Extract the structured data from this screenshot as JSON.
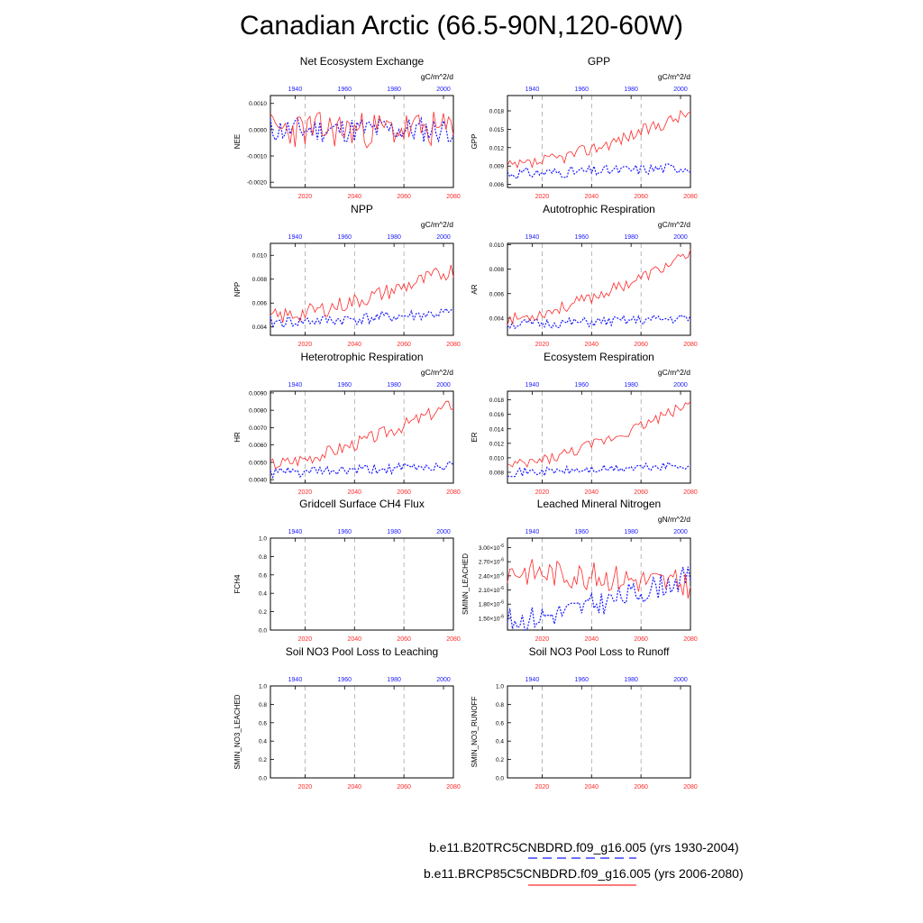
{
  "title": "Canadian Arctic (66.5-90N,120-60W)",
  "colors": {
    "future": "#ff2a2a",
    "historical": "#1a1aff",
    "guide": "#888888"
  },
  "legend": {
    "historical": "b.e11.B20TRC5CNBDRD.f09_g16.005 (yrs 1930-2004)",
    "future": "b.e11.BRCP85C5CNBDRD.f09_g16.005 (yrs 2006-2080)"
  },
  "chart_data": [
    {
      "type": "line",
      "title": "Net Ecosystem Exchange",
      "units": "gC/m^2/d",
      "ylabel": "NEE",
      "ylim": [
        -0.0022,
        0.0013
      ],
      "yticks": [
        -0.002,
        -0.001,
        0.0,
        0.001
      ],
      "ytick_labels": [
        "-0.0020",
        "-0.0010",
        "0.0000",
        "0.0010"
      ],
      "xlim_future": [
        2006,
        2080
      ],
      "xticks_future": [
        2020,
        2040,
        2060,
        2080
      ],
      "xticks_hist": [
        1940,
        1960,
        1980,
        2000
      ],
      "series": [
        {
          "name": "historical",
          "start": 0.0,
          "end": 0.0,
          "noise": 0.0005,
          "seed": 11
        },
        {
          "name": "future",
          "start": 0.0,
          "end": 0.0,
          "noise": 0.0007,
          "seed": 23
        }
      ]
    },
    {
      "type": "line",
      "title": "GPP",
      "units": "gC/m^2/d",
      "ylabel": "GPP",
      "ylim": [
        0.0055,
        0.0205
      ],
      "yticks": [
        0.006,
        0.009,
        0.012,
        0.015,
        0.018
      ],
      "ytick_labels": [
        "0.006",
        "0.009",
        "0.012",
        "0.015",
        "0.018"
      ],
      "xlim_future": [
        2006,
        2080
      ],
      "xticks_future": [
        2020,
        2040,
        2060,
        2080
      ],
      "xticks_hist": [
        1940,
        1960,
        1980,
        2000
      ],
      "series": [
        {
          "name": "historical",
          "start": 0.0078,
          "end": 0.0088,
          "noise": 0.0009,
          "seed": 31
        },
        {
          "name": "future",
          "start": 0.0088,
          "end": 0.0178,
          "noise": 0.0011,
          "seed": 37
        }
      ]
    },
    {
      "type": "line",
      "title": "NPP",
      "units": "gC/m^2/d",
      "ylabel": "NPP",
      "ylim": [
        0.0033,
        0.011
      ],
      "yticks": [
        0.004,
        0.006,
        0.008,
        0.01
      ],
      "ytick_labels": [
        "0.004",
        "0.006",
        "0.008",
        "0.010"
      ],
      "xlim_future": [
        2006,
        2080
      ],
      "xticks_future": [
        2020,
        2040,
        2060,
        2080
      ],
      "xticks_hist": [
        1940,
        1960,
        1980,
        2000
      ],
      "series": [
        {
          "name": "historical",
          "start": 0.0044,
          "end": 0.0052,
          "noise": 0.0005,
          "seed": 41
        },
        {
          "name": "future",
          "start": 0.0048,
          "end": 0.0088,
          "noise": 0.0007,
          "seed": 43
        }
      ]
    },
    {
      "type": "line",
      "title": "Autotrophic Respiration",
      "units": "gC/m^2/d",
      "ylabel": "AR",
      "ylim": [
        0.0026,
        0.0101
      ],
      "yticks": [
        0.004,
        0.006,
        0.008,
        0.01
      ],
      "ytick_labels": [
        "0.004",
        "0.006",
        "0.008",
        "0.010"
      ],
      "xlim_future": [
        2006,
        2080
      ],
      "xticks_future": [
        2020,
        2040,
        2060,
        2080
      ],
      "xticks_hist": [
        1940,
        1960,
        1980,
        2000
      ],
      "series": [
        {
          "name": "historical",
          "start": 0.0035,
          "end": 0.004,
          "noise": 0.0004,
          "seed": 51
        },
        {
          "name": "future",
          "start": 0.0039,
          "end": 0.0092,
          "noise": 0.0005,
          "seed": 53
        }
      ]
    },
    {
      "type": "line",
      "title": "Heterotrophic Respiration",
      "units": "gC/m^2/d",
      "ylabel": "HR",
      "ylim": [
        0.0038,
        0.0091
      ],
      "yticks": [
        0.004,
        0.005,
        0.006,
        0.007,
        0.008,
        0.009
      ],
      "ytick_labels": [
        "0.0040",
        "0.0050",
        "0.0060",
        "0.0070",
        "0.0080",
        "0.0090"
      ],
      "xlim_future": [
        2006,
        2080
      ],
      "xticks_future": [
        2020,
        2040,
        2060,
        2080
      ],
      "xticks_hist": [
        1940,
        1960,
        1980,
        2000
      ],
      "series": [
        {
          "name": "historical",
          "start": 0.0044,
          "end": 0.0048,
          "noise": 0.0003,
          "seed": 61
        },
        {
          "name": "future",
          "start": 0.0049,
          "end": 0.0084,
          "noise": 0.0004,
          "seed": 67
        }
      ]
    },
    {
      "type": "line",
      "title": "Ecosystem Respiration",
      "units": "gC/m^2/d",
      "ylabel": "ER",
      "ylim": [
        0.0065,
        0.0192
      ],
      "yticks": [
        0.008,
        0.01,
        0.012,
        0.014,
        0.016,
        0.018
      ],
      "ytick_labels": [
        "0.008",
        "0.010",
        "0.012",
        "0.014",
        "0.016",
        "0.018"
      ],
      "xlim_future": [
        2006,
        2080
      ],
      "xticks_future": [
        2020,
        2040,
        2060,
        2080
      ],
      "xticks_hist": [
        1940,
        1960,
        1980,
        2000
      ],
      "series": [
        {
          "name": "historical",
          "start": 0.008,
          "end": 0.009,
          "noise": 0.0006,
          "seed": 71
        },
        {
          "name": "future",
          "start": 0.0088,
          "end": 0.0176,
          "noise": 0.0008,
          "seed": 73
        }
      ]
    },
    {
      "type": "line",
      "title": "Gridcell Surface CH4 Flux",
      "units": "",
      "ylabel": "FCH4",
      "ylim": [
        0,
        1
      ],
      "yticks": [
        0,
        0.2,
        0.4,
        0.6,
        0.8,
        1.0
      ],
      "ytick_labels": [
        "0.0",
        "0.2",
        "0.4",
        "0.6",
        "0.8",
        "1.0"
      ],
      "xlim_future": [
        2006,
        2080
      ],
      "xticks_future": [
        2020,
        2040,
        2060,
        2080
      ],
      "xticks_hist": [
        1940,
        1960,
        1980,
        2000
      ],
      "series": []
    },
    {
      "type": "line",
      "title": "Leached Mineral Nitrogen",
      "units": "gN/m^2/d",
      "ylabel": "SMINN_LEACHED",
      "ylim": [
        1.25e-06,
        3.2e-06
      ],
      "yticks": [
        1.5e-06,
        1.8e-06,
        2.1e-06,
        2.4e-06,
        2.7e-06,
        3e-06
      ],
      "ytick_labels": [
        "1.50",
        "1.80",
        "2.10",
        "2.40",
        "2.70",
        "3.00"
      ],
      "ytick_exp": "-6",
      "xlim_future": [
        2006,
        2080
      ],
      "xticks_future": [
        2020,
        2040,
        2060,
        2080
      ],
      "xticks_hist": [
        1940,
        1960,
        1980,
        2000
      ],
      "series": [
        {
          "name": "historical",
          "start": 1.45e-06,
          "end": 2.4e-06,
          "noise": 2.6e-07,
          "seed": 81
        },
        {
          "name": "future",
          "start": 2.5e-06,
          "end": 2.2e-06,
          "noise": 3e-07,
          "seed": 83
        }
      ]
    },
    {
      "type": "line",
      "title": "Soil NO3 Pool Loss to Leaching",
      "units": "",
      "ylabel": "SMIN_NO3_LEACHED",
      "ylim": [
        0,
        1
      ],
      "yticks": [
        0,
        0.2,
        0.4,
        0.6,
        0.8,
        1.0
      ],
      "ytick_labels": [
        "0.0",
        "0.2",
        "0.4",
        "0.6",
        "0.8",
        "1.0"
      ],
      "xlim_future": [
        2006,
        2080
      ],
      "xticks_future": [
        2020,
        2040,
        2060,
        2080
      ],
      "xticks_hist": [
        1940,
        1960,
        1980,
        2000
      ],
      "series": []
    },
    {
      "type": "line",
      "title": "Soil NO3 Pool Loss to Runoff",
      "units": "",
      "ylabel": "SMIN_NO3_RUNOFF",
      "ylim": [
        0,
        1
      ],
      "yticks": [
        0,
        0.2,
        0.4,
        0.6,
        0.8,
        1.0
      ],
      "ytick_labels": [
        "0.0",
        "0.2",
        "0.4",
        "0.6",
        "0.8",
        "1.0"
      ],
      "xlim_future": [
        2006,
        2080
      ],
      "xticks_future": [
        2020,
        2040,
        2060,
        2080
      ],
      "xticks_hist": [
        1940,
        1960,
        1980,
        2000
      ],
      "series": []
    }
  ]
}
